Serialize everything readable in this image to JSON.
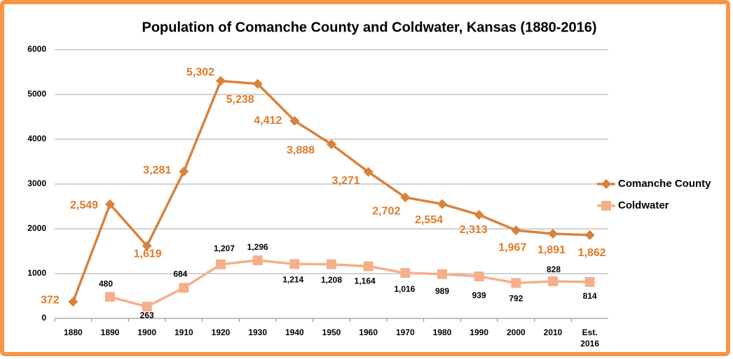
{
  "chart_data": {
    "type": "line",
    "title": "Population of Comanche County and Coldwater, Kansas (1880-2016)",
    "categories": [
      "1880",
      "1890",
      "1900",
      "1910",
      "1920",
      "1930",
      "1940",
      "1950",
      "1960",
      "1970",
      "1980",
      "1990",
      "2000",
      "2010",
      "Est. 2016"
    ],
    "series": [
      {
        "name": "Comanche County",
        "color": "#d9823b",
        "values": [
          372,
          2549,
          1619,
          3281,
          5302,
          5238,
          4412,
          3888,
          3271,
          2702,
          2554,
          2313,
          1967,
          1891,
          1862
        ],
        "value_labels": [
          "372",
          "2,549",
          "1,619",
          "3,281",
          "5,302",
          "5,238",
          "4,412",
          "3,888",
          "3,271",
          "2,702",
          "2,554",
          "2,313",
          "1,967",
          "1,891",
          "1,862"
        ]
      },
      {
        "name": "Coldwater",
        "color": "#f5b08a",
        "values": [
          null,
          480,
          263,
          684,
          1207,
          1296,
          1214,
          1208,
          1164,
          1016,
          989,
          939,
          792,
          828,
          814
        ],
        "value_labels": [
          null,
          "480",
          "263",
          "684",
          "1,207",
          "1,296",
          "1,214",
          "1,208",
          "1,164",
          "1,016",
          "989",
          "939",
          "792",
          "828",
          "814"
        ]
      }
    ],
    "ylim": [
      0,
      6000
    ],
    "yticks": [
      0,
      1000,
      2000,
      3000,
      4000,
      5000,
      6000
    ],
    "grid": true,
    "legend": "right"
  }
}
